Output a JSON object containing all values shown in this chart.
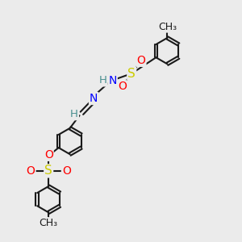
{
  "bg_color": "#ebebeb",
  "bond_color": "#1a1a1a",
  "atom_colors": {
    "N": "#0000ff",
    "O": "#ff0000",
    "S": "#cccc00",
    "H": "#4a9090",
    "C": "#1a1a1a"
  },
  "lw": 1.5,
  "fs": 10,
  "figsize": [
    3.0,
    3.0
  ],
  "dpi": 100,
  "ring_r": 0.055
}
